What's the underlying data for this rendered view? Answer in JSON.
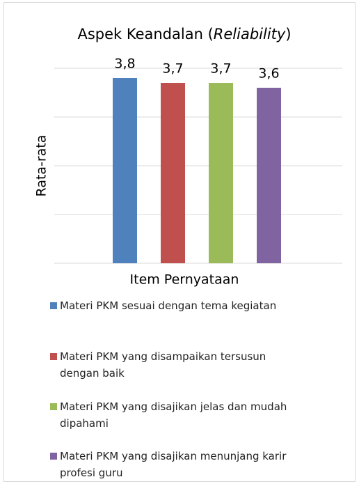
{
  "chart_data": {
    "type": "bar",
    "title": "Aspek Keandalan (Reliability)",
    "x_label": "Item Pernyataan",
    "y_label": "Rata-rata",
    "categories": [
      "Materi PKM sesuai dengan tema kegiatan",
      "Materi PKM yang disampaikan tersusun dengan baik",
      "Materi PKM yang disajikan jelas dan mudah dipahami",
      "Materi PKM yang disajikan menunjang karir profesi guru"
    ],
    "values": [
      3.8,
      3.7,
      3.7,
      3.6
    ],
    "value_labels": [
      "3,8",
      "3,7",
      "3,7",
      "3,6"
    ],
    "colors": [
      "#4f81bd",
      "#c0504d",
      "#9bbb59",
      "#8064a2"
    ],
    "ylim": [
      0,
      4
    ],
    "yticks": [
      0,
      1,
      2,
      3,
      4
    ],
    "grid": true,
    "legend": "bottom"
  }
}
